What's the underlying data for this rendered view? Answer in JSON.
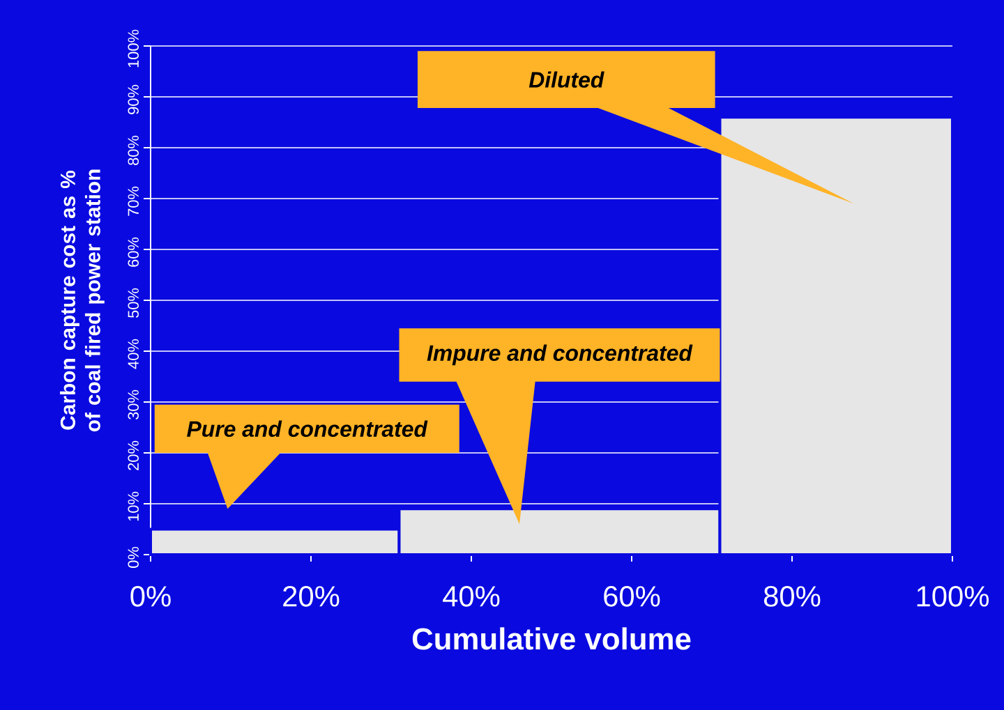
{
  "chart_data": {
    "type": "histogram",
    "xlabel": "Cumulative volume",
    "ylabel": "Carbon capture cost as % of coal fired power station",
    "bins": [
      0,
      31,
      71,
      100
    ],
    "values": [
      5,
      9,
      86
    ],
    "color": "#e6e6e6",
    "xlim": [
      0,
      100
    ],
    "ylim": [
      0,
      100
    ],
    "xticks": [
      {
        "value": 0,
        "label": "0%"
      },
      {
        "value": 20,
        "label": "20%"
      },
      {
        "value": 40,
        "label": "40%"
      },
      {
        "value": 60,
        "label": "60%"
      },
      {
        "value": 80,
        "label": "80%"
      },
      {
        "value": 100,
        "label": "100%"
      }
    ],
    "yticks": [
      {
        "value": 0,
        "label": "0%"
      },
      {
        "value": 10,
        "label": "10%"
      },
      {
        "value": 20,
        "label": "20%"
      },
      {
        "value": 30,
        "label": "30%"
      },
      {
        "value": 40,
        "label": "40%"
      },
      {
        "value": 50,
        "label": "50%"
      },
      {
        "value": 60,
        "label": "60%"
      },
      {
        "value": 70,
        "label": "70%"
      },
      {
        "value": 80,
        "label": "80%"
      },
      {
        "value": 90,
        "label": "90%"
      },
      {
        "value": 100,
        "label": "100%"
      }
    ],
    "grid": "y",
    "annotations": [
      "Pure and concentrated",
      "Impure and concentrated",
      "Diluted"
    ]
  }
}
